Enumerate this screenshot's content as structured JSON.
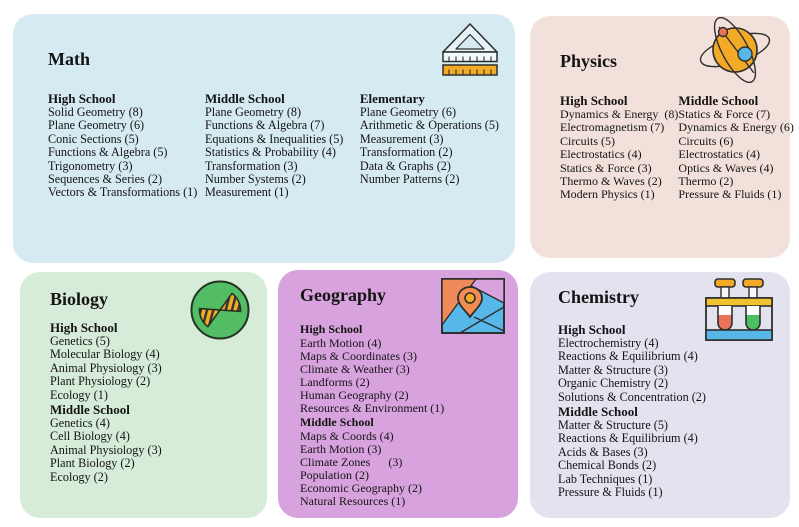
{
  "colors": {
    "page_bg": "#ffffff",
    "text": "#141414",
    "math_card_bg": "#d6eaf2",
    "physics_card_bg": "#f2e1da",
    "biology_card_bg": "#d7ecd8",
    "geography_card_bg": "#d7a2dd",
    "chemistry_card_bg": "#e3e3ef",
    "icon_orange": "#f3aa27",
    "icon_salmon": "#e8745a",
    "icon_blue": "#58b7e9",
    "icon_green": "#53bd66"
  },
  "cards": [
    {
      "id": "math",
      "title": "Math",
      "icon": "ruler-set-square-icon",
      "layout": "columns",
      "sections": [
        {
          "header": "High School",
          "items": [
            "Solid Geometry (8)",
            "Plane Geometry (6)",
            "Conic Sections (5)",
            "Functions & Algebra (5)",
            "Trigonometry (3)",
            "Sequences & Series (2)",
            "Vectors & Transformations (1)"
          ]
        },
        {
          "header": "Middle School",
          "items": [
            "Plane Geometry (8)",
            "Functions & Algebra (7)",
            "Equations & Inequalities (5)",
            "Statistics & Probability (4)",
            "Transformation (3)",
            "Number Systems (2)",
            "Measurement (1)"
          ]
        },
        {
          "header": "Elementary",
          "items": [
            "Plane Geometry (6)",
            "Arithmetic & Operations (5)",
            "Measurement (3)",
            "Transformation (2)",
            "Data & Graphs (2)",
            "Number Patterns (2)"
          ]
        }
      ]
    },
    {
      "id": "physics",
      "title": "Physics",
      "icon": "atom-icon",
      "layout": "columns",
      "sections": [
        {
          "header": "High School",
          "items": [
            "Dynamics & Energy  (8)",
            "Electromagnetism (7)",
            "Circuits (5)",
            "Electrostatics (4)",
            "Statics & Force (3)",
            "Thermo & Waves (2)",
            "Modern Physics (1)"
          ]
        },
        {
          "header": "Middle School",
          "items": [
            "Statics & Force (7)",
            "Dynamics & Energy (6)",
            "Circuits (6)",
            "Electrostatics (4)",
            "Optics & Waves (4)",
            "Thermo (2)",
            "Pressure & Fluids (1)"
          ]
        }
      ]
    },
    {
      "id": "biology",
      "title": "Biology",
      "icon": "dna-icon",
      "layout": "stacked",
      "sections": [
        {
          "header": "High School",
          "items": [
            "Genetics (5)",
            "Molecular Biology (4)",
            "Animal Physiology (3)",
            "Plant Physiology (2)",
            "Ecology (1)"
          ]
        },
        {
          "header": "Middle School",
          "items": [
            "Genetics (4)",
            "Cell Biology (4)",
            "Animal Physiology (3)",
            "Plant Biology (2)",
            "Ecology (2)"
          ]
        }
      ]
    },
    {
      "id": "geography",
      "title": "Geography",
      "icon": "map-pin-icon",
      "layout": "stacked",
      "sections": [
        {
          "header": "High School",
          "items": [
            "Earth Motion (4)",
            "Maps & Coordinates (3)",
            "Climate & Weather (3)",
            "Landforms (2)",
            "Human Geography (2)",
            "Resources & Environment (1)"
          ]
        },
        {
          "header": "Middle School",
          "items": [
            "Maps & Coords (4)",
            "Earth Motion (3)",
            "Climate Zones      (3)",
            "Population (2)",
            "Economic Geography (2)",
            "Natural Resources (1)"
          ]
        }
      ]
    },
    {
      "id": "chemistry",
      "title": "Chemistry",
      "icon": "test-tubes-icon",
      "layout": "stacked",
      "sections": [
        {
          "header": "High School",
          "items": [
            "Electrochemistry (4)",
            "Reactions & Equilibrium (4)",
            "Matter & Structure (3)",
            "Organic Chemistry (2)",
            "Solutions & Concentration (2)"
          ]
        },
        {
          "header": "Middle School",
          "items": [
            "Matter & Structure (5)",
            "Reactions & Equilibrium (4)",
            "Acids & Bases (3)",
            "Chemical Bonds (2)",
            "Lab Techniques (1)",
            "Pressure & Fluids (1)"
          ]
        }
      ]
    }
  ]
}
